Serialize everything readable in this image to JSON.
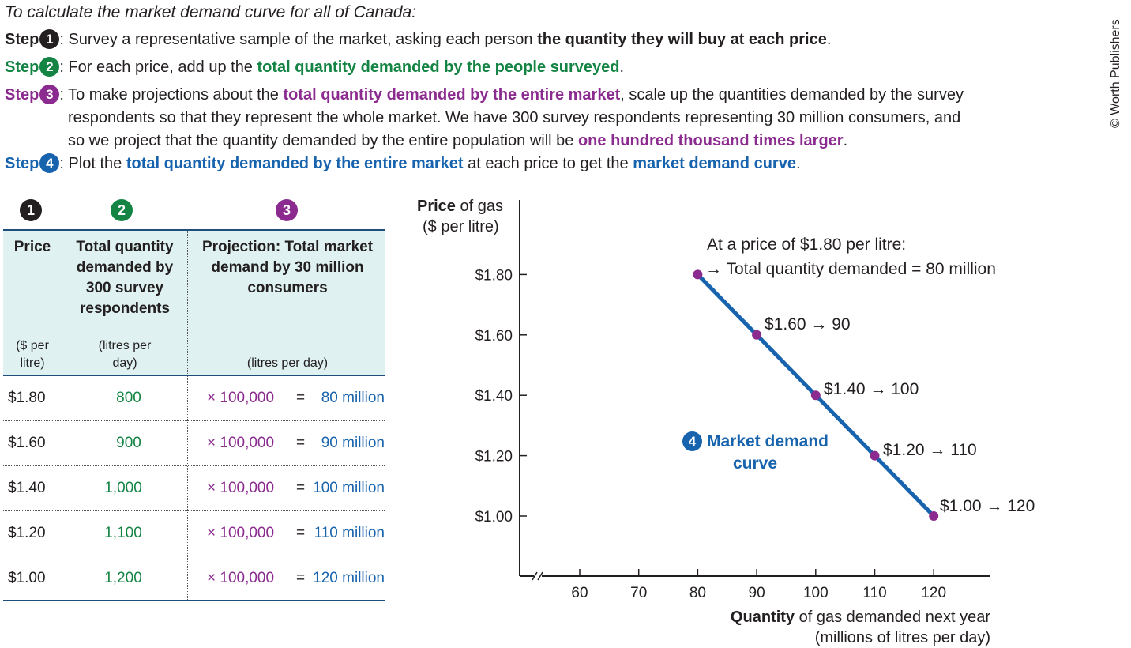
{
  "intro": "To calculate the market demand curve for all of Canada:",
  "credit": "© Worth Publishers",
  "steps": [
    {
      "label": "Step",
      "num": "1",
      "parts": [
        {
          "t": ": Survey a representative sample of the market, asking each person ",
          "b": false
        },
        {
          "t": "the quantity they will buy at each price",
          "b": true
        },
        {
          "t": ".",
          "b": false
        }
      ]
    },
    {
      "label": "Step",
      "num": "2",
      "parts": [
        {
          "t": ": For each price, add up the ",
          "b": false
        },
        {
          "t": "total quantity demanded by the people surveyed",
          "b": true
        },
        {
          "t": ".",
          "b": false
        }
      ]
    },
    {
      "label": "Step",
      "num": "3",
      "parts": [
        {
          "t": ": To make projections about the ",
          "b": false
        },
        {
          "t": "total quantity demanded by the entire market",
          "b": true
        },
        {
          "t": ", scale up the quantities demanded by the survey",
          "b": false
        }
      ],
      "line2": "respondents so that they represent the whole market. We have 300 survey respondents representing 30 million consumers, and",
      "line3a": "so we project that the quantity demanded by the entire population will be ",
      "line3b": "one hundred thousand times larger",
      "line3c": "."
    },
    {
      "label": "Step",
      "num": "4",
      "parts": [
        {
          "t": ": Plot the ",
          "b": false
        },
        {
          "t": "total quantity demanded by the entire market",
          "b": true
        },
        {
          "t": " at each price to get the ",
          "b": false
        },
        {
          "t": "market demand curve",
          "b": true
        },
        {
          "t": ".",
          "b": false
        }
      ]
    }
  ],
  "table": {
    "badges": [
      "1",
      "2",
      "3"
    ],
    "headers": [
      {
        "title": "Price",
        "unit": "($ per litre)"
      },
      {
        "title": "Total quantity demanded by 300 survey respondents",
        "unit": "(litres per day)"
      },
      {
        "title": "Projection: Total market demand by 30 million consumers",
        "unit": "(litres per day)"
      }
    ],
    "rows": [
      {
        "price": "$1.80",
        "qty": "800",
        "mult": "× 100,000",
        "eq": "=",
        "total": "80 million"
      },
      {
        "price": "$1.60",
        "qty": "900",
        "mult": "× 100,000",
        "eq": "=",
        "total": "90 million"
      },
      {
        "price": "$1.40",
        "qty": "1,000",
        "mult": "× 100,000",
        "eq": "=",
        "total": "100 million"
      },
      {
        "price": "$1.20",
        "qty": "1,100",
        "mult": "× 100,000",
        "eq": "=",
        "total": "110 million"
      },
      {
        "price": "$1.00",
        "qty": "1,200",
        "mult": "× 100,000",
        "eq": "=",
        "total": "120 million"
      }
    ]
  },
  "chart_data": {
    "type": "line",
    "title": "",
    "series": [
      {
        "name": "Market demand curve",
        "x": [
          80,
          90,
          100,
          110,
          120
        ],
        "y": [
          1.8,
          1.6,
          1.4,
          1.2,
          1.0
        ]
      }
    ],
    "xticks": [
      60,
      70,
      80,
      90,
      100,
      110,
      120
    ],
    "yticks": [
      1.0,
      1.2,
      1.4,
      1.6,
      1.8
    ],
    "ytick_labels": [
      "$1.00",
      "$1.20",
      "$1.40",
      "$1.60",
      "$1.80"
    ],
    "xlim": [
      50,
      130
    ],
    "ylim": [
      0.8,
      2.0
    ],
    "xlabel_bold": "Quantity",
    "xlabel_rest": " of gas demanded next year",
    "xlabel_line2": "(millions of litres per day)",
    "ylabel_bold": "Price",
    "ylabel_rest": " of gas",
    "ylabel_line2": "($ per litre)",
    "annotations": [
      "$1.60 → 90",
      "$1.40 → 100",
      "$1.20 → 110",
      "$1.00 → 120"
    ],
    "top_annotation_line1": "At a price of $1.80 per litre:",
    "top_annotation_line2": "→ Total quantity demanded = 80 million",
    "curve_badge": "4",
    "curve_label_line1": "Market demand",
    "curve_label_line2": "curve",
    "grid": false,
    "colors": {
      "line": "#1763ad",
      "point": "#8b2b8f"
    }
  }
}
